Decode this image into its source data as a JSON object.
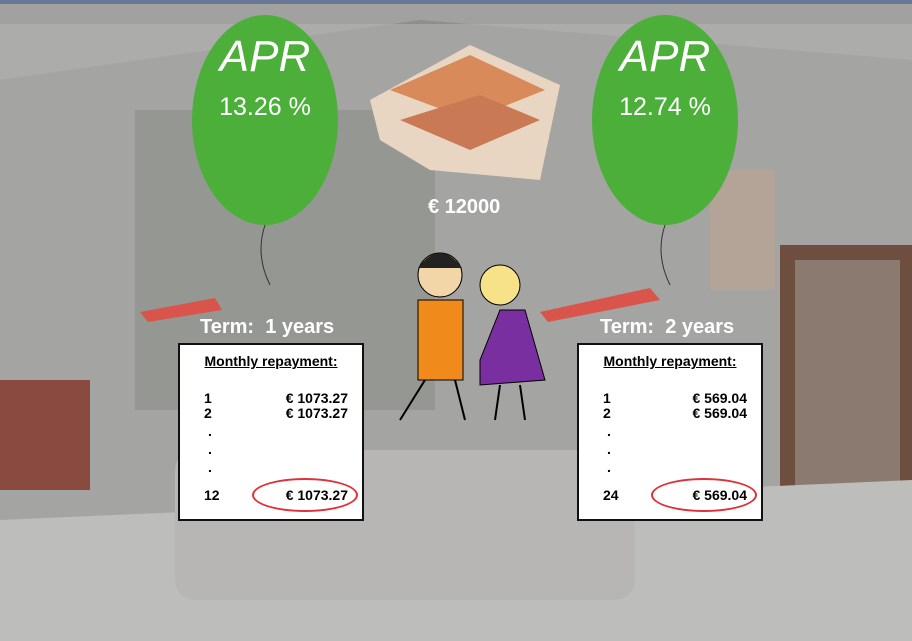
{
  "amount": "€ 12000",
  "offers": [
    {
      "balloon": {
        "label": "APR",
        "rate": "13.26 %"
      },
      "term": "Term:  1 years",
      "table": {
        "header": "Monthly repayment:",
        "rows": [
          [
            "1",
            "€ 1073.27"
          ],
          [
            "2",
            "€ 1073.27"
          ]
        ],
        "dots": [
          ".",
          ".",
          "."
        ],
        "last": [
          "12",
          "€ 1073.27"
        ]
      }
    },
    {
      "balloon": {
        "label": "APR",
        "rate": "12.74 %"
      },
      "term": "Term:  2 years",
      "table": {
        "header": "Monthly repayment:",
        "rows": [
          [
            "1",
            "€ 569.04"
          ],
          [
            "2",
            "€ 569.04"
          ]
        ],
        "dots": [
          ".",
          ".",
          "."
        ],
        "last": [
          "24",
          "€ 569.04"
        ]
      }
    }
  ]
}
